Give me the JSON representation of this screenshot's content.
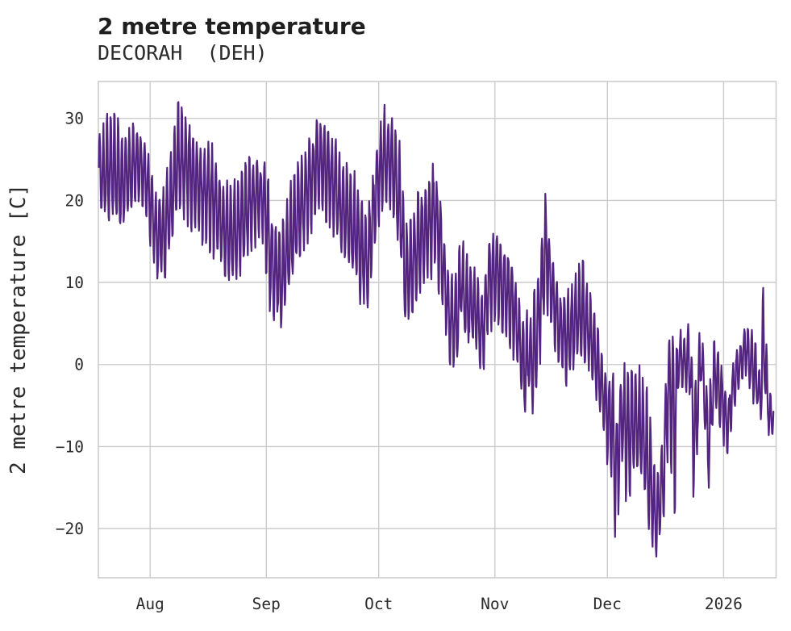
{
  "header": {
    "title": "2 metre temperature",
    "subtitle": "DECORAH  (DEH)"
  },
  "chart_data": {
    "type": "line",
    "title": "2 metre temperature",
    "subtitle": "DECORAH  (DEH)",
    "xlabel": "",
    "ylabel": "2 metre temperature [C]",
    "x_tick_labels": [
      "Aug",
      "Sep",
      "Oct",
      "Nov",
      "Dec",
      "2026"
    ],
    "x_tick_days": [
      14,
      45,
      75,
      106,
      136,
      167
    ],
    "y_ticks": [
      -20,
      -10,
      0,
      10,
      20,
      30
    ],
    "ylim": [
      -26,
      34.5
    ],
    "xlim_days": [
      0.2,
      181
    ],
    "grid": "on",
    "legend": "none",
    "line_color": "#542580",
    "grid_color": "#cccccc",
    "text_color": "#2b2b2b",
    "series": [
      {
        "name": "2 metre temperature [C]",
        "note": "noisy sub-daily series; stored as [day, daily_high_C, daily_low_C] envelope keypoints, day 0 = first plotted point (~2 weeks before Aug tick)",
        "envelope": [
          [
            0,
            27,
            20
          ],
          [
            2,
            29,
            17.5
          ],
          [
            4.5,
            31.3,
            18
          ],
          [
            6,
            28,
            16
          ],
          [
            8,
            27.5,
            18.5
          ],
          [
            10,
            29.5,
            19.5
          ],
          [
            12,
            28,
            20
          ],
          [
            13,
            26.5,
            18
          ],
          [
            14,
            24.5,
            15
          ],
          [
            16,
            20,
            11
          ],
          [
            18,
            22,
            10.5
          ],
          [
            20,
            27,
            16
          ],
          [
            21.5,
            31.1,
            19
          ],
          [
            24,
            29.5,
            18
          ],
          [
            26,
            27.5,
            17
          ],
          [
            28,
            26,
            15.5
          ],
          [
            30,
            27,
            15
          ],
          [
            32,
            24,
            13
          ],
          [
            34,
            21.5,
            11
          ],
          [
            36,
            21,
            10
          ],
          [
            38,
            23,
            11.5
          ],
          [
            40,
            24.5,
            13.5
          ],
          [
            42,
            25.5,
            15
          ],
          [
            44,
            24.5,
            16
          ],
          [
            45,
            25,
            12
          ],
          [
            46,
            19,
            7
          ],
          [
            47,
            17,
            5.5
          ],
          [
            49,
            16.5,
            5
          ],
          [
            51,
            20,
            9
          ],
          [
            53,
            23.5,
            12
          ],
          [
            55,
            25,
            14.5
          ],
          [
            57,
            27.5,
            17
          ],
          [
            58.5,
            30.3,
            19
          ],
          [
            61,
            29,
            18.5
          ],
          [
            63,
            27,
            16.5
          ],
          [
            65,
            25,
            14
          ],
          [
            67,
            24,
            12
          ],
          [
            69,
            22,
            10
          ],
          [
            71,
            20,
            7
          ],
          [
            72,
            18,
            6.5
          ],
          [
            73,
            22,
            11
          ],
          [
            75,
            28,
            18
          ],
          [
            76.5,
            31.2,
            20
          ],
          [
            79,
            29.5,
            19
          ],
          [
            81,
            25,
            12
          ],
          [
            82,
            16,
            4
          ],
          [
            84,
            18,
            6.5
          ],
          [
            86,
            21,
            9
          ],
          [
            88,
            23,
            11
          ],
          [
            90,
            24.5,
            13
          ],
          [
            92,
            18,
            7
          ],
          [
            94,
            10,
            0
          ],
          [
            96,
            12,
            -0.5
          ],
          [
            97,
            16.5,
            6
          ],
          [
            98,
            12.5,
            3
          ],
          [
            100,
            12,
            2.5
          ],
          [
            102,
            9,
            0
          ],
          [
            103,
            8,
            -0.6
          ],
          [
            104,
            15,
            4
          ],
          [
            106,
            16.5,
            6
          ],
          [
            108,
            14.5,
            4
          ],
          [
            110,
            13.5,
            2.5
          ],
          [
            112,
            10,
            0
          ],
          [
            113,
            5.5,
            -3
          ],
          [
            114,
            6,
            -7
          ],
          [
            115,
            5,
            -2
          ],
          [
            116,
            6,
            -6.5
          ],
          [
            118,
            13.5,
            1
          ],
          [
            119.5,
            21.1,
            8
          ],
          [
            121,
            13.5,
            5
          ],
          [
            123,
            9,
            0.5
          ],
          [
            125,
            8,
            -2
          ],
          [
            127,
            10,
            0
          ],
          [
            129,
            12.5,
            1
          ],
          [
            131,
            9,
            -1
          ],
          [
            133,
            5,
            -4
          ],
          [
            135,
            0,
            -8
          ],
          [
            136,
            -2,
            -12
          ],
          [
            137.5,
            -0.7,
            -13
          ],
          [
            138,
            -8,
            -21.7
          ],
          [
            140,
            -1,
            -12
          ],
          [
            141.5,
            -0.7,
            -17.3
          ],
          [
            143,
            -1,
            -13
          ],
          [
            145,
            -2,
            -13.5
          ],
          [
            147,
            -5,
            -19.7
          ],
          [
            149,
            -15,
            -23.4
          ],
          [
            151,
            -8,
            -18
          ],
          [
            152.3,
            4.6,
            -9
          ],
          [
            154,
            3,
            -19
          ],
          [
            155,
            4,
            -2
          ],
          [
            156.5,
            3.5,
            -3.3
          ],
          [
            158,
            5.1,
            -3.5
          ],
          [
            159,
            -4,
            -16.3
          ],
          [
            160,
            1,
            -10
          ],
          [
            161,
            4.1,
            -1.5
          ],
          [
            163,
            -5,
            -15.4
          ],
          [
            164.5,
            2.6,
            -4
          ],
          [
            166,
            1.5,
            -7.9
          ],
          [
            168,
            -5,
            -10.5
          ],
          [
            170,
            1.6,
            -5.1
          ],
          [
            171.5,
            2.6,
            -1.8
          ],
          [
            173,
            5.1,
            -1
          ],
          [
            175,
            3.5,
            -4.6
          ],
          [
            177,
            -2,
            -6.8
          ],
          [
            177.5,
            9.5,
            -2
          ],
          [
            179,
            -3,
            -8.3
          ],
          [
            180.4,
            -5,
            -8.5
          ]
        ]
      }
    ]
  }
}
